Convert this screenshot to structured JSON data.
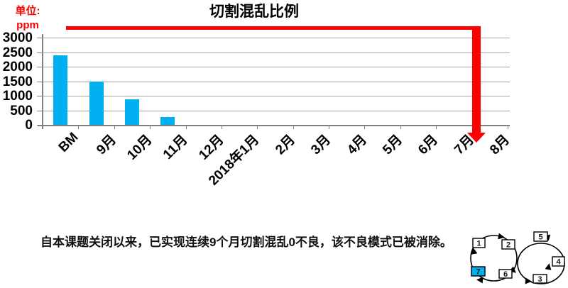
{
  "unit_label": {
    "line1": "单位:",
    "line2": "ppm"
  },
  "chart_data": {
    "type": "bar",
    "title": "切割混乱比例",
    "categories": [
      "BM",
      "9月",
      "10月",
      "11月",
      "12月",
      "2018年1月",
      "2月",
      "3月",
      "4月",
      "5月",
      "6月",
      "7月",
      "8月"
    ],
    "values": [
      2400,
      1480,
      890,
      280,
      0,
      0,
      0,
      0,
      0,
      0,
      0,
      0,
      0
    ],
    "ylabel": "ppm",
    "xlabel": "",
    "ylim": [
      0,
      3000
    ],
    "yticks": [
      0,
      500,
      1000,
      1500,
      2000,
      2500,
      3000
    ],
    "grid": true,
    "legend": "none",
    "annotation": "红色箭头：从BM水平横跨至8月后下降到0"
  },
  "footer": {
    "summary": "自本课题关闭以来，已实现连续9个月切割混乱0不良，该不良模式已被消除。"
  },
  "cycle_diagram": {
    "steps": [
      "1",
      "2",
      "3",
      "4",
      "5",
      "6",
      "7"
    ],
    "highlighted_step": "7",
    "highlight_color": "#00b0f0"
  },
  "colors": {
    "bar": "#00b0f0",
    "arrow": "#ff0000",
    "grid": "#a6a6a6",
    "axis": "#808080",
    "unit_text": "#ff0000"
  }
}
